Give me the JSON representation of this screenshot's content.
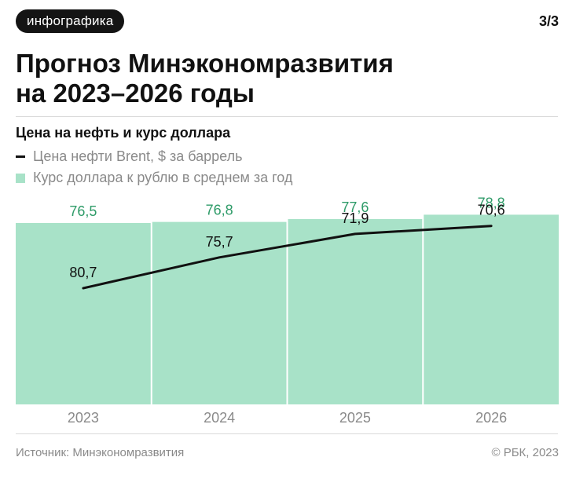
{
  "header": {
    "badge": "инфографика",
    "page": "3/3",
    "title_line1": "Прогноз Минэкономразвития",
    "title_line2": "на 2023–2026 годы"
  },
  "chart_data": {
    "type": "bar",
    "title": "Цена на нефть и курс доллара",
    "categories": [
      "2023",
      "2024",
      "2025",
      "2026"
    ],
    "series": [
      {
        "name": "Курс доллара к рублю в среднем за год",
        "type": "bar",
        "color": "#a8e2c8",
        "label_color": "#2e9b68",
        "values": [
          76.5,
          76.8,
          77.6,
          78.8
        ],
        "labels": [
          "76,5",
          "76,8",
          "77,6",
          "78,8"
        ]
      },
      {
        "name": "Цена нефти Brent, $ за баррель",
        "type": "line",
        "color": "#111111",
        "values": [
          80.7,
          75.7,
          71.9,
          70.6
        ],
        "labels": [
          "80,7",
          "75,7",
          "71,9",
          "70,6"
        ]
      }
    ],
    "legend_position": "top-left",
    "grid": false
  },
  "footer": {
    "source": "Источник: Минэкономразвития",
    "copyright": "© РБК, 2023"
  }
}
